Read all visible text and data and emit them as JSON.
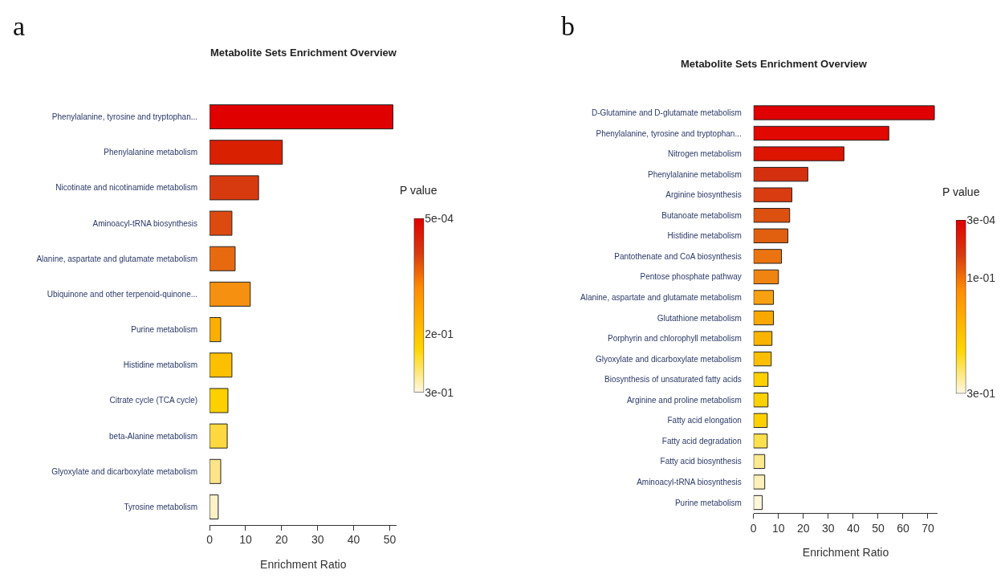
{
  "chart_data": [
    {
      "type": "bar",
      "orientation": "horizontal",
      "title": "Metabolite Sets Enrichment Overview",
      "xlabel": "Enrichment Ratio",
      "clabel": "P value",
      "annotations": [
        "a"
      ],
      "categories": [
        "Phenylalanine, tyrosine and tryptophan...",
        "Phenylalanine metabolism",
        "Nicotinate and nicotinamide metabolism",
        "Aminoacyl-tRNA biosynthesis",
        "Alanine, aspartate and glutamate metabolism",
        "Ubiquinone and other terpenoid-quinone...",
        "Purine metabolism",
        "Histidine metabolism",
        "Citrate cycle (TCA cycle)",
        "beta-Alanine metabolism",
        "Glyoxylate and dicarboxylate metabolism",
        "Tyrosine metabolism"
      ],
      "values": [
        50.9,
        20.2,
        13.6,
        6.2,
        7.1,
        11.3,
        3.1,
        6.2,
        5.1,
        4.9,
        3.1,
        2.4
      ],
      "colors": [
        "#e00000",
        "#d92000",
        "#d83a10",
        "#dc4a10",
        "#e86a10",
        "#f59010",
        "#fbb000",
        "#fcc000",
        "#fdd000",
        "#fdd840",
        "#fde48a",
        "#fef1c8"
      ],
      "xlim": [
        0,
        52
      ],
      "xticks": [
        0,
        10,
        20,
        30,
        40,
        50
      ],
      "clim": [
        0.3,
        0.0005
      ],
      "cticks": [
        {
          "value": 0.0005,
          "label": "5e-04"
        },
        {
          "value": 0.2,
          "label": "2e-01"
        },
        {
          "value": 0.3,
          "label": "3e-01"
        }
      ]
    },
    {
      "type": "bar",
      "orientation": "horizontal",
      "title": "Metabolite Sets Enrichment Overview",
      "xlabel": "Enrichment Ratio",
      "clabel": "P value",
      "annotations": [
        "b"
      ],
      "categories": [
        "D-Glutamine and D-glutamate metabolism",
        "Phenylalanine, tyrosine and tryptophan...",
        "Nitrogen metabolism",
        "Phenylalanine metabolism",
        "Arginine biosynthesis",
        "Butanoate metabolism",
        "Histidine metabolism",
        "Pantothenate and CoA biosynthesis",
        "Pentose phosphate pathway",
        "Alanine, aspartate and glutamate metabolism",
        "Glutathione metabolism",
        "Porphyrin and chlorophyll metabolism",
        "Glyoxylate and dicarboxylate metabolism",
        "Biosynthesis of unsaturated fatty acids",
        "Arginine and proline metabolism",
        "Fatty acid elongation",
        "Fatty acid degradation",
        "Fatty acid biosynthesis",
        "Aminoacyl-tRNA biosynthesis",
        "Purine metabolism"
      ],
      "values": [
        72.6,
        54.3,
        36.3,
        21.8,
        15.4,
        14.5,
        13.8,
        11.2,
        10.0,
        8.0,
        8.0,
        7.4,
        7.1,
        5.8,
        5.8,
        5.5,
        5.5,
        4.5,
        4.5,
        3.5
      ],
      "colors": [
        "#e00000",
        "#e00800",
        "#dc1400",
        "#d43010",
        "#d83c10",
        "#dc5010",
        "#e06010",
        "#ec7410",
        "#f08410",
        "#f7a010",
        "#f9a800",
        "#fab400",
        "#fbbe00",
        "#fdd000",
        "#fdd000",
        "#fdd000",
        "#fde050",
        "#fee890",
        "#fef0b8",
        "#fff6dc"
      ],
      "xlim": [
        0,
        74
      ],
      "xticks": [
        0,
        10,
        20,
        30,
        40,
        50,
        60,
        70
      ],
      "clim": [
        0.3,
        0.0003
      ],
      "cticks": [
        {
          "value": 0.0003,
          "label": "3e-04"
        },
        {
          "value": 0.1,
          "label": "1e-01"
        },
        {
          "value": 0.3,
          "label": "3e-01"
        }
      ]
    }
  ]
}
